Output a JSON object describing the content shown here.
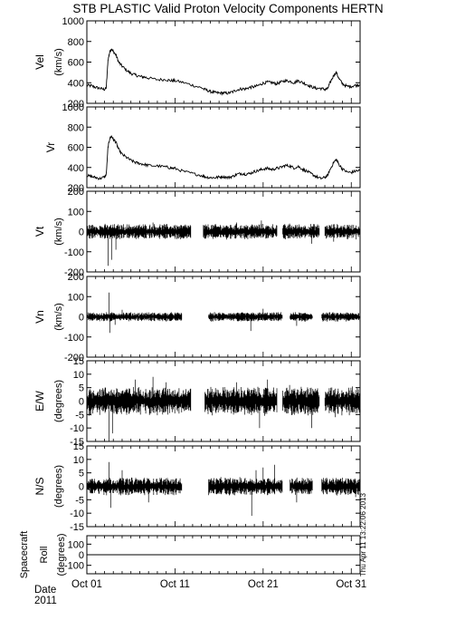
{
  "chart_data": {
    "type": "line",
    "title": "STB PLASTIC Valid Proton Velocity Components HERTN",
    "timestamp": "Thu Apr 11 13:22:06 2013",
    "x_axis": {
      "label_line1": "Date",
      "label_line2": "2011",
      "range_days": [
        1,
        32
      ],
      "ticks": [
        {
          "day": 1,
          "label": "Oct 01"
        },
        {
          "day": 11,
          "label": "Oct 11"
        },
        {
          "day": 21,
          "label": "Oct 21"
        },
        {
          "day": 31,
          "label": "Oct 31"
        }
      ]
    },
    "panels": [
      {
        "id": "vel",
        "label": "Vel",
        "unit": "(km/s)",
        "ylim": [
          200,
          1000
        ],
        "yticks": [
          200,
          400,
          600,
          800,
          1000
        ],
        "dense": false,
        "series": [
          [
            1.0,
            375
          ],
          [
            1.5,
            370
          ],
          [
            2.0,
            355
          ],
          [
            2.5,
            345
          ],
          [
            3.0,
            335
          ],
          [
            3.2,
            350
          ],
          [
            3.4,
            620
          ],
          [
            3.6,
            700
          ],
          [
            3.8,
            730
          ],
          [
            4.0,
            700
          ],
          [
            4.3,
            670
          ],
          [
            4.6,
            600
          ],
          [
            5.0,
            560
          ],
          [
            5.5,
            520
          ],
          [
            6.0,
            490
          ],
          [
            6.5,
            475
          ],
          [
            7.0,
            460
          ],
          [
            7.5,
            455
          ],
          [
            8.0,
            445
          ],
          [
            9.0,
            430
          ],
          [
            10.0,
            430
          ],
          [
            10.5,
            420
          ],
          [
            11.0,
            420
          ],
          [
            12.0,
            400
          ],
          [
            13.0,
            375
          ],
          [
            14.0,
            350
          ],
          [
            14.5,
            330
          ],
          [
            15.0,
            315
          ],
          [
            15.5,
            305
          ],
          [
            16.0,
            300
          ],
          [
            16.5,
            300
          ],
          [
            17.0,
            298
          ],
          [
            17.5,
            310
          ],
          [
            18.0,
            330
          ],
          [
            18.5,
            340
          ],
          [
            19.0,
            340
          ],
          [
            19.5,
            355
          ],
          [
            20.0,
            360
          ],
          [
            20.5,
            375
          ],
          [
            21.0,
            395
          ],
          [
            21.5,
            405
          ],
          [
            22.0,
            400
          ],
          [
            22.5,
            390
          ],
          [
            23.0,
            405
          ],
          [
            23.5,
            420
          ],
          [
            24.0,
            415
          ],
          [
            24.5,
            400
          ],
          [
            25.0,
            420
          ],
          [
            25.5,
            400
          ],
          [
            26.0,
            380
          ],
          [
            26.5,
            360
          ],
          [
            27.0,
            345
          ],
          [
            27.5,
            345
          ],
          [
            28.0,
            335
          ],
          [
            28.3,
            340
          ],
          [
            28.6,
            400
          ],
          [
            29.0,
            470
          ],
          [
            29.3,
            500
          ],
          [
            29.6,
            440
          ],
          [
            30.0,
            390
          ],
          [
            30.5,
            365
          ],
          [
            31.0,
            365
          ],
          [
            31.5,
            375
          ],
          [
            32.0,
            380
          ]
        ]
      },
      {
        "id": "vr",
        "label": "Vr",
        "unit": "",
        "ylim": [
          200,
          1000
        ],
        "yticks": [
          200,
          400,
          600,
          800,
          1000
        ],
        "dense": false,
        "series": [
          [
            1.0,
            320
          ],
          [
            1.5,
            310
          ],
          [
            2.0,
            300
          ],
          [
            2.5,
            290
          ],
          [
            3.0,
            305
          ],
          [
            3.2,
            330
          ],
          [
            3.4,
            600
          ],
          [
            3.6,
            690
          ],
          [
            3.8,
            710
          ],
          [
            4.0,
            680
          ],
          [
            4.3,
            650
          ],
          [
            4.6,
            580
          ],
          [
            5.0,
            530
          ],
          [
            5.5,
            500
          ],
          [
            6.0,
            470
          ],
          [
            6.5,
            450
          ],
          [
            7.0,
            440
          ],
          [
            7.5,
            430
          ],
          [
            8.0,
            420
          ],
          [
            9.0,
            415
          ],
          [
            10.0,
            405
          ],
          [
            10.5,
            395
          ],
          [
            11.0,
            390
          ],
          [
            12.0,
            360
          ],
          [
            13.0,
            340
          ],
          [
            14.0,
            320
          ],
          [
            14.5,
            305
          ],
          [
            15.0,
            300
          ],
          [
            15.5,
            298
          ],
          [
            16.0,
            305
          ],
          [
            16.5,
            310
          ],
          [
            17.0,
            300
          ],
          [
            17.5,
            310
          ],
          [
            18.0,
            330
          ],
          [
            18.5,
            340
          ],
          [
            19.0,
            335
          ],
          [
            19.5,
            340
          ],
          [
            20.0,
            360
          ],
          [
            20.5,
            370
          ],
          [
            21.0,
            385
          ],
          [
            21.5,
            390
          ],
          [
            22.0,
            380
          ],
          [
            22.5,
            390
          ],
          [
            23.0,
            400
          ],
          [
            23.5,
            420
          ],
          [
            24.0,
            415
          ],
          [
            24.5,
            395
          ],
          [
            25.0,
            410
          ],
          [
            25.5,
            380
          ],
          [
            26.0,
            360
          ],
          [
            26.5,
            335
          ],
          [
            27.0,
            310
          ],
          [
            27.5,
            290
          ],
          [
            28.0,
            300
          ],
          [
            28.3,
            320
          ],
          [
            28.6,
            380
          ],
          [
            29.0,
            450
          ],
          [
            29.3,
            480
          ],
          [
            29.6,
            430
          ],
          [
            30.0,
            385
          ],
          [
            30.5,
            355
          ],
          [
            31.0,
            350
          ],
          [
            31.5,
            365
          ],
          [
            32.0,
            370
          ]
        ]
      },
      {
        "id": "vt",
        "label": "Vt",
        "unit": "(km/s)",
        "ylim": [
          -200,
          200
        ],
        "yticks": [
          -200,
          -100,
          0,
          100,
          200
        ],
        "dense": true,
        "amp": 25,
        "gaps": [
          [
            12.8,
            14.2
          ],
          [
            22.6,
            23.2
          ],
          [
            27.4,
            28.0
          ]
        ],
        "events": [
          [
            3.4,
            -170
          ],
          [
            3.8,
            -140
          ],
          [
            4.3,
            -90
          ],
          [
            8.5,
            45
          ],
          [
            18.0,
            45
          ],
          [
            20.8,
            55
          ],
          [
            24.0,
            40
          ],
          [
            26.5,
            -60
          ],
          [
            29.0,
            -50
          ]
        ]
      },
      {
        "id": "vn",
        "label": "Vn",
        "unit": "(km/s)",
        "ylim": [
          -200,
          200
        ],
        "yticks": [
          -200,
          -100,
          0,
          100,
          200
        ],
        "dense": true,
        "amp": 15,
        "gaps": [
          [
            11.8,
            14.8
          ],
          [
            23.2,
            24.0
          ],
          [
            26.6,
            27.6
          ]
        ],
        "events": [
          [
            3.5,
            120
          ],
          [
            3.6,
            -80
          ],
          [
            4.2,
            -40
          ],
          [
            5.0,
            35
          ],
          [
            19.6,
            -70
          ],
          [
            21.0,
            40
          ],
          [
            24.8,
            -45
          ]
        ]
      },
      {
        "id": "ew",
        "label": "E/W",
        "unit": "(degrees)",
        "ylim": [
          -15,
          15
        ],
        "yticks": [
          -15,
          -10,
          -5,
          0,
          5,
          10,
          15
        ],
        "dense": true,
        "amp": 3.5,
        "gaps": [
          [
            12.8,
            14.4
          ],
          [
            22.6,
            23.2
          ],
          [
            27.4,
            28.0
          ]
        ],
        "events": [
          [
            3.5,
            -16
          ],
          [
            3.9,
            -12
          ],
          [
            6.5,
            8
          ],
          [
            8.5,
            9
          ],
          [
            10.0,
            7
          ],
          [
            18.0,
            7
          ],
          [
            20.6,
            -10
          ],
          [
            21.5,
            8
          ],
          [
            24.0,
            6
          ],
          [
            26.5,
            -10
          ],
          [
            29.2,
            -6
          ],
          [
            31.0,
            4
          ]
        ]
      },
      {
        "id": "ns",
        "label": "N/S",
        "unit": "(degrees)",
        "ylim": [
          -15,
          15
        ],
        "yticks": [
          -15,
          -10,
          -5,
          0,
          5,
          10,
          15
        ],
        "dense": true,
        "amp": 2.2,
        "gaps": [
          [
            11.8,
            14.8
          ],
          [
            23.2,
            24.0
          ],
          [
            26.6,
            27.6
          ]
        ],
        "events": [
          [
            3.5,
            9
          ],
          [
            3.7,
            -8
          ],
          [
            5.0,
            6
          ],
          [
            8.0,
            -6
          ],
          [
            19.7,
            -11
          ],
          [
            20.2,
            6
          ],
          [
            21.0,
            7
          ],
          [
            22.3,
            8
          ],
          [
            24.8,
            -6
          ],
          [
            31.5,
            -4
          ]
        ]
      },
      {
        "id": "roll",
        "label": "Spacecraft",
        "label2": "Roll",
        "unit": "(degrees)",
        "ylim": [
          -180,
          180
        ],
        "yticks": [
          -100,
          0,
          100
        ],
        "flat": 0
      }
    ]
  }
}
